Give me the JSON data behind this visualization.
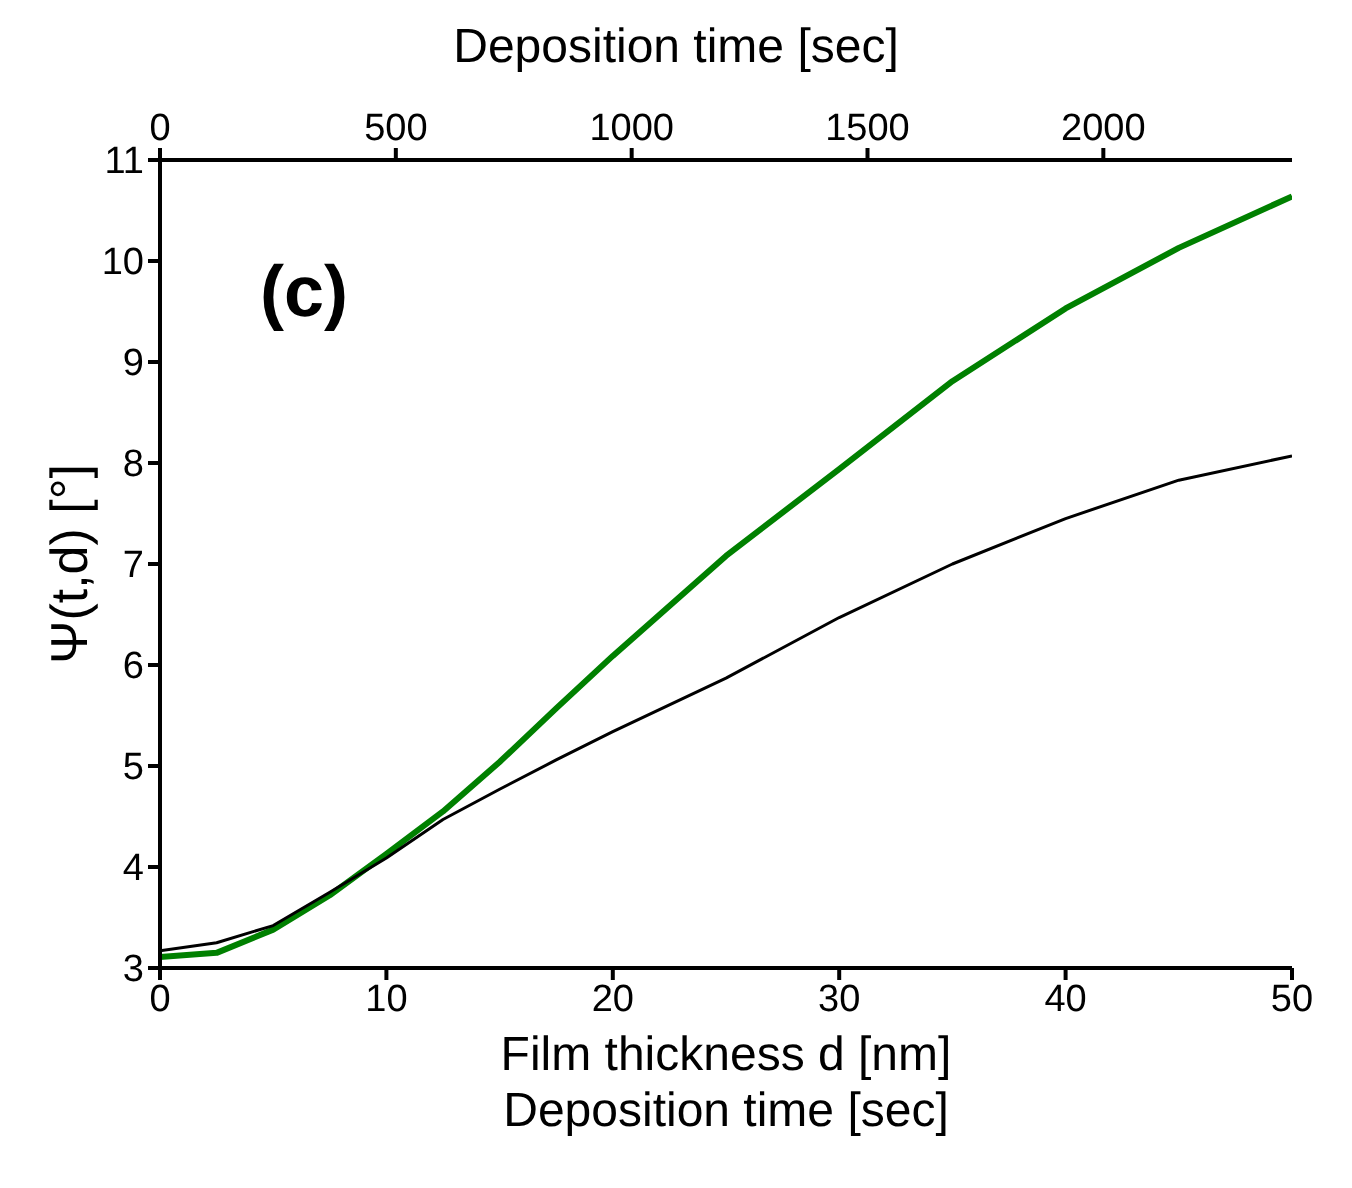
{
  "chart_data": {
    "type": "line",
    "x2label": "Deposition time [sec]",
    "xlabel": "Film thickness d [nm]",
    "ylabel": "Ψ(t,d) [°]",
    "annotations": [
      "(c)",
      "Deposition time [sec]"
    ],
    "x": [
      0,
      2.5,
      5,
      7.5,
      10,
      12.5,
      15,
      17.5,
      20,
      25,
      30,
      35,
      40,
      45,
      50
    ],
    "series": [
      {
        "color": "#008000",
        "values": [
          3.11,
          3.15,
          3.38,
          3.72,
          4.13,
          4.55,
          5.04,
          5.57,
          6.09,
          7.08,
          7.94,
          8.81,
          9.53,
          10.13,
          10.64
        ]
      },
      {
        "color": "#000000",
        "values": [
          3.17,
          3.25,
          3.42,
          3.75,
          4.09,
          4.47,
          4.77,
          5.06,
          5.34,
          5.87,
          6.47,
          7.0,
          7.45,
          7.83,
          8.07
        ]
      }
    ],
    "xlim": [
      0,
      50
    ],
    "xticks": [
      0,
      10,
      20,
      30,
      40,
      50
    ],
    "x2lim": [
      0,
      2400
    ],
    "x2ticks": [
      0,
      500,
      1000,
      1500,
      2000
    ],
    "ylim": [
      3,
      11
    ],
    "yticks": [
      3,
      4,
      5,
      6,
      7,
      8,
      9,
      10,
      11
    ],
    "grid": false,
    "legend": false,
    "marker": "none",
    "line_style": "solid"
  }
}
